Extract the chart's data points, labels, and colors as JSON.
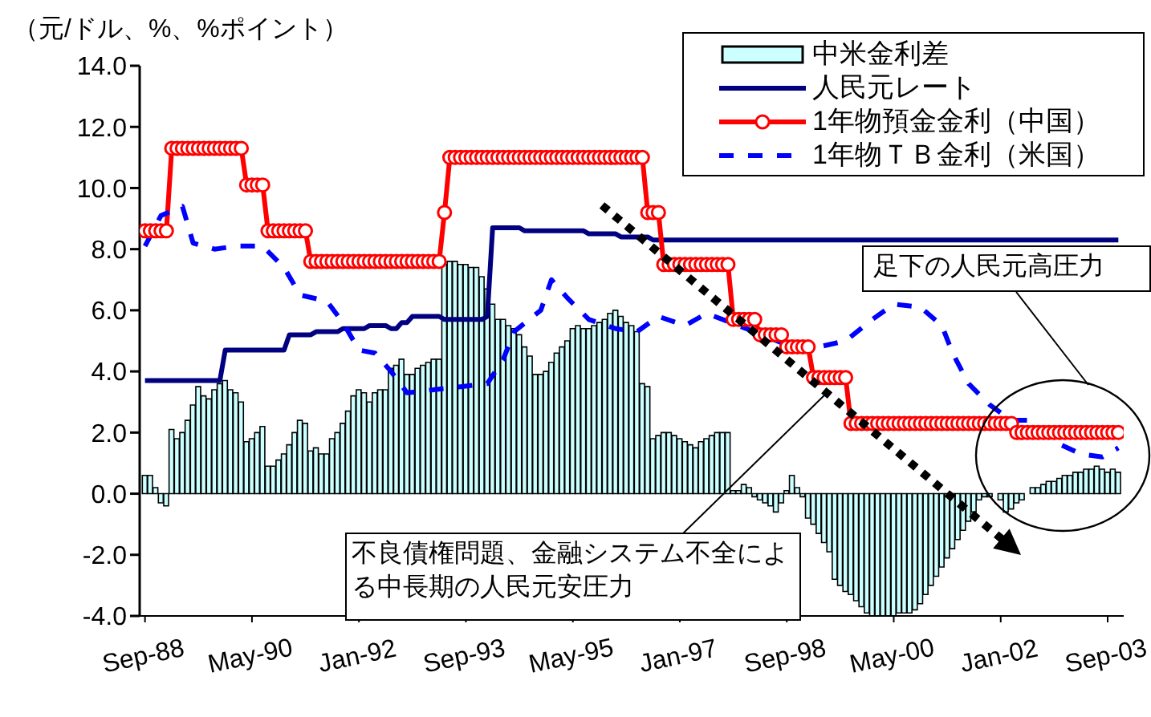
{
  "chart_data": {
    "type": "bar",
    "ylabel": "（元/ドル、%、%ポイント）",
    "legend": "top right",
    "x": [
      "1988-09",
      "1988-10",
      "1988-11",
      "1988-12",
      "1989-01",
      "1989-02",
      "1989-03",
      "1989-04",
      "1989-05",
      "1989-06",
      "1989-07",
      "1989-08",
      "1989-09",
      "1989-10",
      "1989-11",
      "1989-12",
      "1990-01",
      "1990-02",
      "1990-03",
      "1990-04",
      "1990-05",
      "1990-06",
      "1990-07",
      "1990-08",
      "1990-09",
      "1990-10",
      "1990-11",
      "1990-12",
      "1991-01",
      "1991-02",
      "1991-03",
      "1991-04",
      "1991-05",
      "1991-06",
      "1991-07",
      "1991-08",
      "1991-09",
      "1991-10",
      "1991-11",
      "1991-12",
      "1992-01",
      "1992-02",
      "1992-03",
      "1992-04",
      "1992-05",
      "1992-06",
      "1992-07",
      "1992-08",
      "1992-09",
      "1992-10",
      "1992-11",
      "1992-12",
      "1993-01",
      "1993-02",
      "1993-03",
      "1993-04",
      "1993-05",
      "1993-06",
      "1993-07",
      "1993-08",
      "1993-09",
      "1993-10",
      "1993-11",
      "1993-12",
      "1994-01",
      "1994-02",
      "1994-03",
      "1994-04",
      "1994-05",
      "1994-06",
      "1994-07",
      "1994-08",
      "1994-09",
      "1994-10",
      "1994-11",
      "1994-12",
      "1995-01",
      "1995-02",
      "1995-03",
      "1995-04",
      "1995-05",
      "1995-06",
      "1995-07",
      "1995-08",
      "1995-09",
      "1995-10",
      "1995-11",
      "1995-12",
      "1996-01",
      "1996-02",
      "1996-03",
      "1996-04",
      "1996-05",
      "1996-06",
      "1996-07",
      "1996-08",
      "1996-09",
      "1996-10",
      "1996-11",
      "1996-12",
      "1997-01",
      "1997-02",
      "1997-03",
      "1997-04",
      "1997-05",
      "1997-06",
      "1997-07",
      "1997-08",
      "1997-09",
      "1997-10",
      "1997-11",
      "1997-12",
      "1998-01",
      "1998-02",
      "1998-03",
      "1998-04",
      "1998-05",
      "1998-06",
      "1998-07",
      "1998-08",
      "1998-09",
      "1998-10",
      "1998-11",
      "1998-12",
      "1999-01",
      "1999-02",
      "1999-03",
      "1999-04",
      "1999-05",
      "1999-06",
      "1999-07",
      "1999-08",
      "1999-09",
      "1999-10",
      "1999-11",
      "1999-12",
      "2000-01",
      "2000-02",
      "2000-03",
      "2000-04",
      "2000-05",
      "2000-06",
      "2000-07",
      "2000-08",
      "2000-09",
      "2000-10",
      "2000-11",
      "2000-12",
      "2001-01",
      "2001-02",
      "2001-03",
      "2001-04",
      "2001-05",
      "2001-06",
      "2001-07",
      "2001-08",
      "2001-09",
      "2001-10",
      "2001-11",
      "2001-12",
      "2002-01",
      "2002-02",
      "2002-03",
      "2002-04",
      "2002-05",
      "2002-06",
      "2002-07",
      "2002-08",
      "2002-09",
      "2002-10",
      "2002-11",
      "2002-12",
      "2003-01",
      "2003-02",
      "2003-03",
      "2003-04",
      "2003-05",
      "2003-06",
      "2003-07",
      "2003-08",
      "2003-09",
      "2003-10",
      "2003-11"
    ],
    "xlim": [
      "1988-08",
      "2003-12"
    ],
    "xticks": [
      {
        "value": "1988-09",
        "label": "Sep-88"
      },
      {
        "value": "1990-05",
        "label": "May-90"
      },
      {
        "value": "1992-01",
        "label": "Jan-92"
      },
      {
        "value": "1993-09",
        "label": "Sep-93"
      },
      {
        "value": "1995-05",
        "label": "May-95"
      },
      {
        "value": "1997-01",
        "label": "Jan-97"
      },
      {
        "value": "1998-09",
        "label": "Sep-98"
      },
      {
        "value": "2000-05",
        "label": "May-00"
      },
      {
        "value": "2002-01",
        "label": "Jan-02"
      },
      {
        "value": "2003-09",
        "label": "Sep-03"
      }
    ],
    "ylim": [
      -4,
      14
    ],
    "yticks": [
      {
        "value": -4,
        "label": "-4.0"
      },
      {
        "value": -2,
        "label": "-2.0"
      },
      {
        "value": 0,
        "label": "0.0"
      },
      {
        "value": 2,
        "label": "2.0"
      },
      {
        "value": 4,
        "label": "4.0"
      },
      {
        "value": 6,
        "label": "6.0"
      },
      {
        "value": 8,
        "label": "8.0"
      },
      {
        "value": 10,
        "label": "10.0"
      },
      {
        "value": 12,
        "label": "12.0"
      },
      {
        "value": 14,
        "label": "14.0"
      }
    ],
    "series": [
      {
        "name": "中米金利差",
        "color": "#ccffff",
        "values": [
          0.6,
          0.6,
          0.2,
          -0.3,
          -0.4,
          2.1,
          1.8,
          2.0,
          2.4,
          2.9,
          3.5,
          3.2,
          3.1,
          3.4,
          3.6,
          3.7,
          3.4,
          3.3,
          3.0,
          1.7,
          1.8,
          2.0,
          2.2,
          0.9,
          0.9,
          1.1,
          1.3,
          1.6,
          2.0,
          2.4,
          2.3,
          1.4,
          1.5,
          1.3,
          1.3,
          1.8,
          2.0,
          2.3,
          2.7,
          3.2,
          3.4,
          3.3,
          3.0,
          3.3,
          3.4,
          3.4,
          4.1,
          4.2,
          4.4,
          3.9,
          3.9,
          4.1,
          4.2,
          4.3,
          4.4,
          4.4,
          7.5,
          7.6,
          7.6,
          7.5,
          7.5,
          7.4,
          7.4,
          7.1,
          6.7,
          6.2,
          5.7,
          5.7,
          5.5,
          5.4,
          5.2,
          4.8,
          4.5,
          3.9,
          3.9,
          4.0,
          4.3,
          4.6,
          4.8,
          5.0,
          5.4,
          5.5,
          5.4,
          5.4,
          5.5,
          5.6,
          5.7,
          5.9,
          6.0,
          5.8,
          5.6,
          5.5,
          5.3,
          3.6,
          3.5,
          1.8,
          1.9,
          2.0,
          2.0,
          1.9,
          1.8,
          1.7,
          1.6,
          1.5,
          1.7,
          1.8,
          1.9,
          2.0,
          2.0,
          2.0,
          0.1,
          0.1,
          0.3,
          0.2,
          -0.1,
          -0.2,
          -0.3,
          -0.4,
          -0.6,
          -0.3,
          0.1,
          0.6,
          0.2,
          -0.1,
          -0.8,
          -1.0,
          -1.3,
          -1.6,
          -1.9,
          -2.8,
          -3.0,
          -3.2,
          -3.3,
          -3.5,
          -3.7,
          -3.9,
          -4.0,
          -4.0,
          -4.0,
          -4.0,
          -4.0,
          -3.9,
          -3.9,
          -3.9,
          -3.8,
          -3.6,
          -3.3,
          -3.0,
          -2.7,
          -2.4,
          -2.1,
          -1.8,
          -1.5,
          -1.2,
          -0.9,
          -0.6,
          -0.2,
          -0.1,
          -0.1,
          0.0,
          -0.2,
          -0.6,
          -0.5,
          -0.3,
          -0.2,
          0.0,
          0.2,
          0.2,
          0.3,
          0.4,
          0.4,
          0.5,
          0.6,
          0.6,
          0.7,
          0.7,
          0.8,
          0.8,
          0.9,
          0.8,
          0.7,
          0.8,
          0.7
        ]
      },
      {
        "name": "人民元レート",
        "type": "line",
        "color": "#000080",
        "values": [
          3.7,
          3.7,
          3.7,
          3.7,
          3.7,
          3.7,
          3.7,
          3.7,
          3.7,
          3.7,
          3.7,
          3.7,
          3.7,
          3.7,
          3.7,
          4.7,
          4.7,
          4.7,
          4.7,
          4.7,
          4.7,
          4.7,
          4.7,
          4.7,
          4.7,
          4.7,
          4.7,
          5.2,
          5.2,
          5.2,
          5.2,
          5.2,
          5.3,
          5.3,
          5.3,
          5.3,
          5.3,
          5.4,
          5.4,
          5.4,
          5.4,
          5.4,
          5.5,
          5.5,
          5.5,
          5.5,
          5.4,
          5.4,
          5.6,
          5.6,
          5.8,
          5.8,
          5.8,
          5.8,
          5.8,
          5.8,
          5.7,
          5.7,
          5.7,
          5.7,
          5.7,
          5.7,
          5.7,
          5.7,
          5.8,
          8.7,
          8.7,
          8.7,
          8.7,
          8.7,
          8.7,
          8.6,
          8.6,
          8.6,
          8.6,
          8.6,
          8.6,
          8.6,
          8.6,
          8.6,
          8.6,
          8.6,
          8.6,
          8.5,
          8.5,
          8.5,
          8.5,
          8.5,
          8.5,
          8.4,
          8.4,
          8.4,
          8.4,
          8.4,
          8.4,
          8.3,
          8.3,
          8.3,
          8.3,
          8.3,
          8.3,
          8.3,
          8.3,
          8.3,
          8.3,
          8.3,
          8.3,
          8.3,
          8.3,
          8.3,
          8.3,
          8.3,
          8.3,
          8.3,
          8.3,
          8.3,
          8.3,
          8.3,
          8.3,
          8.3,
          8.3,
          8.3,
          8.3,
          8.3,
          8.3,
          8.3,
          8.3,
          8.3,
          8.3,
          8.3,
          8.3,
          8.3,
          8.3,
          8.3,
          8.3,
          8.3,
          8.3,
          8.3,
          8.3,
          8.3,
          8.3,
          8.3,
          8.3,
          8.3,
          8.3,
          8.3,
          8.3,
          8.3,
          8.3,
          8.3,
          8.3,
          8.3,
          8.3,
          8.3,
          8.3,
          8.3,
          8.3,
          8.3,
          8.3,
          8.3,
          8.3,
          8.3,
          8.3,
          8.3,
          8.3,
          8.3,
          8.3,
          8.3,
          8.3,
          8.3,
          8.3,
          8.3,
          8.3,
          8.3,
          8.3,
          8.3,
          8.3,
          8.3,
          8.3,
          8.3,
          8.3,
          8.3,
          8.3
        ]
      },
      {
        "name": "1年物預金金利（中国）",
        "type": "line",
        "color": "#ff0000",
        "marker": "circle",
        "values": [
          8.6,
          8.6,
          8.6,
          8.6,
          8.6,
          11.3,
          11.3,
          11.3,
          11.3,
          11.3,
          11.3,
          11.3,
          11.3,
          11.3,
          11.3,
          11.3,
          11.3,
          11.3,
          11.3,
          10.1,
          10.1,
          10.1,
          10.1,
          8.6,
          8.6,
          8.6,
          8.6,
          8.6,
          8.6,
          8.6,
          8.6,
          7.6,
          7.6,
          7.6,
          7.6,
          7.6,
          7.6,
          7.6,
          7.6,
          7.6,
          7.6,
          7.6,
          7.6,
          7.6,
          7.6,
          7.6,
          7.6,
          7.6,
          7.6,
          7.6,
          7.6,
          7.6,
          7.6,
          7.6,
          7.6,
          7.6,
          9.2,
          11.0,
          11.0,
          11.0,
          11.0,
          11.0,
          11.0,
          11.0,
          11.0,
          11.0,
          11.0,
          11.0,
          11.0,
          11.0,
          11.0,
          11.0,
          11.0,
          11.0,
          11.0,
          11.0,
          11.0,
          11.0,
          11.0,
          11.0,
          11.0,
          11.0,
          11.0,
          11.0,
          11.0,
          11.0,
          11.0,
          11.0,
          11.0,
          11.0,
          11.0,
          11.0,
          11.0,
          11.0,
          9.2,
          9.2,
          9.2,
          7.5,
          7.5,
          7.5,
          7.5,
          7.5,
          7.5,
          7.5,
          7.5,
          7.5,
          7.5,
          7.5,
          7.5,
          7.5,
          5.7,
          5.7,
          5.7,
          5.7,
          5.7,
          5.2,
          5.2,
          5.2,
          5.2,
          5.2,
          4.8,
          4.8,
          4.8,
          4.8,
          4.8,
          3.8,
          3.8,
          3.8,
          3.8,
          3.8,
          3.8,
          3.8,
          2.3,
          2.3,
          2.3,
          2.3,
          2.3,
          2.3,
          2.3,
          2.3,
          2.3,
          2.3,
          2.3,
          2.3,
          2.3,
          2.3,
          2.3,
          2.3,
          2.3,
          2.3,
          2.3,
          2.3,
          2.3,
          2.3,
          2.3,
          2.3,
          2.3,
          2.3,
          2.3,
          2.3,
          2.3,
          2.3,
          2.3,
          2.0,
          2.0,
          2.0,
          2.0,
          2.0,
          2.0,
          2.0,
          2.0,
          2.0,
          2.0,
          2.0,
          2.0,
          2.0,
          2.0,
          2.0,
          2.0,
          2.0,
          2.0,
          2.0,
          2.0
        ]
      },
      {
        "name": "1年物ＴＢ金利（米国）",
        "type": "line",
        "color": "#0000ff",
        "line_style": "dashed",
        "x": [
          "1988-09",
          "1988-12",
          "1989-04",
          "1989-06",
          "1989-10",
          "1990-02",
          "1990-07",
          "1990-11",
          "1991-02",
          "1991-07",
          "1991-10",
          "1992-01",
          "1992-04",
          "1992-07",
          "1992-10",
          "1993-03",
          "1993-08",
          "1994-01",
          "1994-04",
          "1994-06",
          "1994-11",
          "1995-01",
          "1995-04",
          "1995-08",
          "1996-01",
          "1996-05",
          "1996-09",
          "1997-02",
          "1997-06",
          "1997-12",
          "1998-10",
          "1999-03",
          "1999-08",
          "2000-01",
          "2000-05",
          "2000-10",
          "2001-02",
          "2001-04",
          "2001-07",
          "2001-11",
          "2002-03",
          "2002-06",
          "2002-11",
          "2003-04",
          "2003-08",
          "2003-11"
        ],
        "values": [
          8.1,
          9.1,
          9.4,
          8.2,
          8.0,
          8.1,
          8.1,
          7.4,
          6.5,
          6.3,
          5.6,
          4.7,
          4.6,
          4.0,
          3.3,
          3.4,
          3.5,
          3.6,
          4.4,
          5.3,
          6.0,
          7.0,
          6.4,
          5.7,
          5.4,
          5.3,
          5.8,
          5.5,
          5.9,
          5.5,
          4.8,
          4.8,
          5.0,
          5.7,
          6.2,
          6.1,
          5.5,
          4.6,
          3.6,
          2.9,
          2.4,
          2.4,
          1.7,
          1.3,
          1.2,
          1.5
        ]
      }
    ],
    "annotations": [
      "足下の人民元高圧力",
      "不良債権問題、金融システム不全による中長期の人民元安圧力"
    ]
  }
}
